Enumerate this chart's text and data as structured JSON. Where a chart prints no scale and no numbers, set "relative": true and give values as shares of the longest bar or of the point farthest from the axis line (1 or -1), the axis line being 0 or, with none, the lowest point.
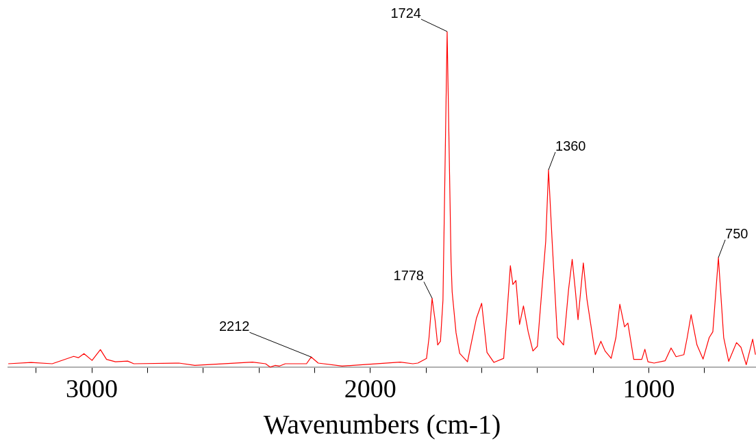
{
  "chart_data": {
    "type": "line",
    "xlabel": "Wavenumbers (cm-1)",
    "relative": true,
    "color": "#ff0000",
    "marker": "none",
    "grid": false,
    "xlim": [
      3300,
      615
    ],
    "xticks": [
      {
        "value": 3200,
        "label": null
      },
      3000,
      {
        "value": 2800,
        "label": null
      },
      {
        "value": 2600,
        "label": null
      },
      {
        "value": 2400,
        "label": null
      },
      {
        "value": 2200,
        "label": null
      },
      2000,
      {
        "value": 1800,
        "label": null
      },
      {
        "value": 1600,
        "label": null
      },
      {
        "value": 1400,
        "label": null
      },
      {
        "value": 1200,
        "label": null
      },
      1000,
      {
        "value": 800,
        "label": null
      }
    ],
    "x": [
      3300,
      3218,
      3142,
      3065,
      3048,
      3028,
      2999,
      2969,
      2947,
      2915,
      2871,
      2849,
      2687,
      2630,
      2423,
      2376,
      2359,
      2342,
      2327,
      2305,
      2229,
      2212,
      2187,
      2101,
      1892,
      1847,
      1829,
      1798,
      1789,
      1778,
      1767,
      1758,
      1748,
      1739,
      1724,
      1710,
      1706,
      1692,
      1679,
      1651,
      1619,
      1600,
      1581,
      1556,
      1521,
      1509,
      1497,
      1488,
      1477,
      1464,
      1450,
      1433,
      1416,
      1400,
      1381,
      1370,
      1360,
      1347,
      1328,
      1306,
      1288,
      1275,
      1264,
      1254,
      1244,
      1235,
      1222,
      1205,
      1192,
      1172,
      1157,
      1135,
      1118,
      1104,
      1087,
      1075,
      1054,
      1025,
      1014,
      1003,
      981,
      941,
      920,
      902,
      874,
      862,
      848,
      827,
      805,
      783,
      770,
      750,
      731,
      713,
      685,
      669,
      650,
      627,
      617
    ],
    "values": [
      0.011,
      0.015,
      0.011,
      0.033,
      0.029,
      0.041,
      0.021,
      0.053,
      0.024,
      0.017,
      0.019,
      0.011,
      0.013,
      0.006,
      0.016,
      0.011,
      0.001,
      0.006,
      0.004,
      0.011,
      0.011,
      0.031,
      0.013,
      0.004,
      0.016,
      0.011,
      0.013,
      0.027,
      0.089,
      0.206,
      0.139,
      0.067,
      0.078,
      0.2,
      1,
      0.318,
      0.225,
      0.103,
      0.042,
      0.017,
      0.146,
      0.191,
      0.045,
      0.015,
      0.027,
      0.16,
      0.303,
      0.247,
      0.259,
      0.128,
      0.183,
      0.106,
      0.049,
      0.063,
      0.261,
      0.376,
      0.588,
      0.376,
      0.089,
      0.067,
      0.232,
      0.322,
      0.232,
      0.142,
      0.232,
      0.311,
      0.203,
      0.11,
      0.038,
      0.078,
      0.049,
      0.027,
      0.089,
      0.188,
      0.121,
      0.132,
      0.024,
      0.024,
      0.054,
      0.017,
      0.013,
      0.02,
      0.058,
      0.032,
      0.038,
      0.089,
      0.157,
      0.067,
      0.025,
      0.089,
      0.106,
      0.327,
      0.089,
      0.018,
      0.074,
      0.06,
      0.008,
      0.084,
      0.038
    ],
    "annotations": [
      {
        "text": "1724",
        "x": 1724,
        "y": 1
      },
      {
        "text": "1360",
        "x": 1360,
        "y": 0.588
      },
      {
        "text": "750",
        "x": 750,
        "y": 0.327
      },
      {
        "text": "1778",
        "x": 1778,
        "y": 0.206
      },
      {
        "text": "2212",
        "x": 2212,
        "y": 0.031
      }
    ]
  }
}
